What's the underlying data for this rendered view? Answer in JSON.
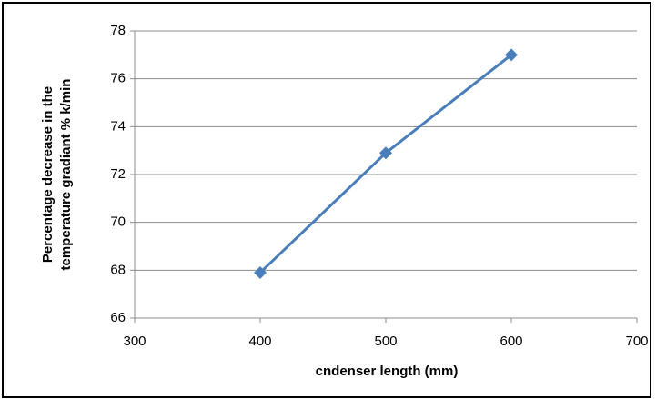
{
  "chart_data": {
    "type": "line",
    "x_label": "cndenser length (mm)",
    "y_label": [
      "Percentage decrease in the",
      "temperature gradiant %  k/min"
    ],
    "x": [
      400,
      500,
      600
    ],
    "series": [
      {
        "name": null,
        "color": "#4a7ebb",
        "values": [
          67.9,
          72.9,
          77.0
        ]
      }
    ],
    "xlim": [
      300,
      700
    ],
    "xticks": [
      300,
      400,
      500,
      600,
      700
    ],
    "ylim": [
      66,
      78
    ],
    "yticks": [
      66,
      68,
      70,
      72,
      74,
      76,
      78
    ],
    "grid": true
  }
}
